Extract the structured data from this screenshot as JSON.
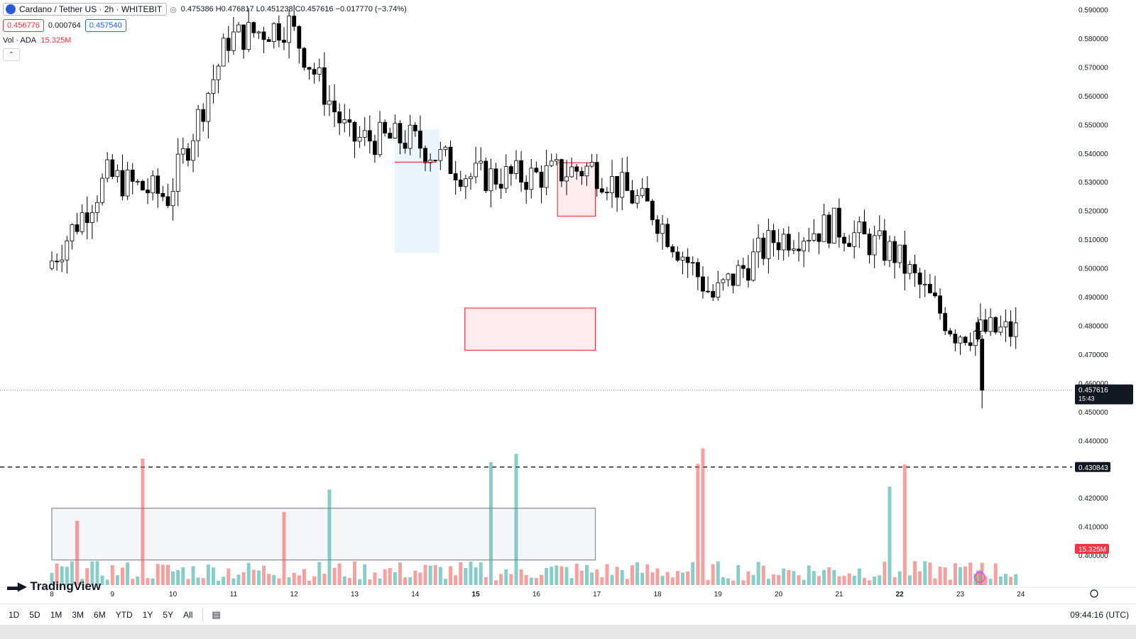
{
  "header": {
    "symbol": "Cardano / Tether US · 2h · WHITEBIT",
    "ohlc": "0.475386 H0.476817 L0.451238 C0.457616 −0.017770 (−3.74%)",
    "bid": "0.456776",
    "spread": "0.000764",
    "ask": "0.457540",
    "vol_label": "Vol · ADA",
    "vol_value": "15.325M",
    "collapse_glyph": "⌃"
  },
  "logo": "TradingView",
  "bottom_bar": {
    "ranges": [
      "1D",
      "5D",
      "1M",
      "3M",
      "6M",
      "YTD",
      "1Y",
      "5Y",
      "All"
    ],
    "clock": "09:44:16 (UTC)",
    "calendar_icon": "calendar-icon"
  },
  "chart_data": {
    "type": "candlestick",
    "timeframe": "2h",
    "x_labels": [
      "8",
      "9",
      "10",
      "11",
      "12",
      "13",
      "14",
      "15",
      "16",
      "17",
      "18",
      "19",
      "20",
      "21",
      "22",
      "23",
      "24"
    ],
    "y_ticks": [
      "0.590000",
      "0.580000",
      "0.570000",
      "0.560000",
      "0.550000",
      "0.540000",
      "0.530000",
      "0.520000",
      "0.510000",
      "0.500000",
      "0.490000",
      "0.480000",
      "0.470000",
      "0.460000",
      "0.450000",
      "0.440000",
      "0.430000",
      "0.420000",
      "0.410000",
      "0.400000"
    ],
    "ylim": [
      0.3975,
      0.593
    ],
    "last_price": {
      "value": 0.457616,
      "label": "0.457616",
      "countdown": "15:43"
    },
    "level_line": {
      "value": 0.430843,
      "label": "0.430843",
      "style": "dashed"
    },
    "volume_label": "15.325M",
    "colors": {
      "up": "#089981",
      "down": "#f23645",
      "candle_up": "#ffffff",
      "candle_down": "#000000",
      "vol_up": "#26a69a",
      "vol_down": "#ef5350"
    },
    "zones": [
      {
        "name": "resistance-zone-upper",
        "t_from": 8.35,
        "t_to": 8.975,
        "y_from": 0.5182,
        "y_to": 0.5368,
        "color": "#f23645"
      },
      {
        "name": "support-zone-lower",
        "t_from": 6.82,
        "t_to": 8.975,
        "y_from": 0.4715,
        "y_to": 0.4862,
        "color": "#f23645"
      },
      {
        "name": "volume-profile-area",
        "t_from": 5.66,
        "t_to": 6.4,
        "y_from": 0.5055,
        "y_to": 0.5485,
        "color": "#4aa8e0"
      },
      {
        "name": "volume-highlight-zone",
        "t_from": 0,
        "t_to": 8.975,
        "y_from": 0.3985,
        "y_to": 0.4165,
        "color": "#9598a1"
      }
    ],
    "poc_line": {
      "t_from": 5.66,
      "t_to": 6.35,
      "value": 0.537,
      "color": "#f23645"
    },
    "anchors": [
      {
        "date": "8",
        "price": 0.5
      },
      {
        "date": "9",
        "price": 0.532
      },
      {
        "date": "10",
        "price": 0.525
      },
      {
        "date": "11",
        "price": 0.58
      },
      {
        "date": "12",
        "price": 0.585
      },
      {
        "date": "13",
        "price": 0.545
      },
      {
        "date": "14",
        "price": 0.545
      },
      {
        "date": "15",
        "price": 0.532
      },
      {
        "date": "16",
        "price": 0.532
      },
      {
        "date": "17",
        "price": 0.535
      },
      {
        "date": "18",
        "price": 0.52
      },
      {
        "date": "19",
        "price": 0.49
      },
      {
        "date": "20",
        "price": 0.51
      },
      {
        "date": "21",
        "price": 0.515
      },
      {
        "date": "22",
        "price": 0.505
      },
      {
        "date": "23",
        "price": 0.478
      }
    ],
    "price_min_visible": 0.451238,
    "price_max_visible": 0.593
  }
}
